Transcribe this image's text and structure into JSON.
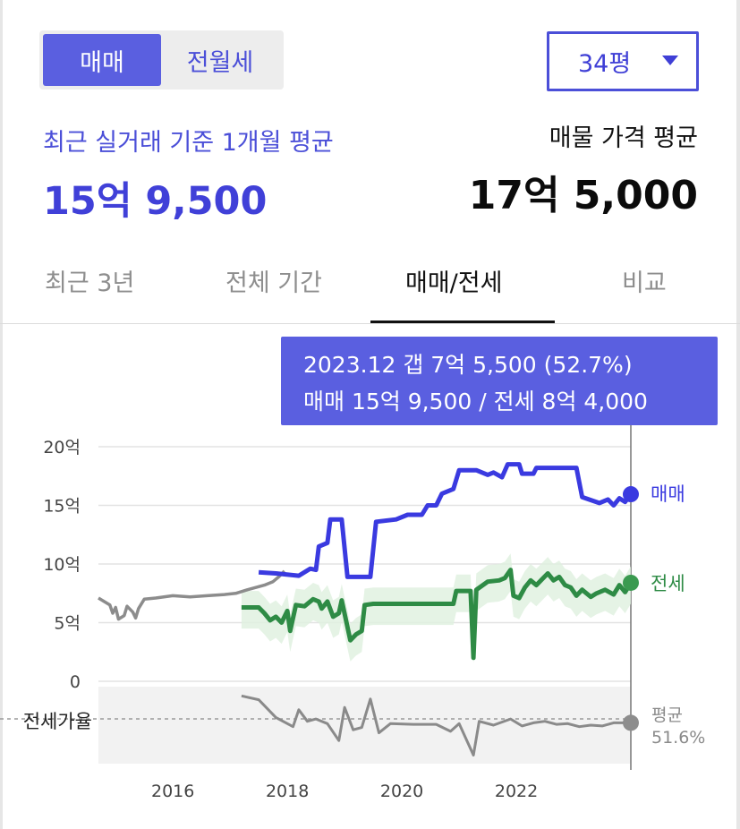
{
  "toggle": {
    "sale_label": "매매",
    "rent_label": "전월세"
  },
  "size_select": {
    "value": "34평"
  },
  "summary": {
    "recent_label": "최근 실거래 기준 1개월 평균",
    "recent_value": "15억 9,500",
    "listing_label": "매물 가격 평균",
    "listing_value": "17억 5,000"
  },
  "tabs": [
    {
      "label": "최근 3년",
      "active": false
    },
    {
      "label": "전체 기간",
      "active": false
    },
    {
      "label": "매매/전세",
      "active": true
    },
    {
      "label": "비교",
      "active": false
    }
  ],
  "tooltip": {
    "line1": "2023.12  갭 7억 5,500 (52.7%)",
    "line2": "매매 15억 9,500 / 전세 8억 4,000"
  },
  "colors": {
    "accent": "#4b4fd8",
    "sale": "#3a3ae0",
    "jeonse": "#2e8b45",
    "ratio": "#8a8a8a"
  },
  "chart_data": {
    "type": "line",
    "y_ticks": [
      "20억",
      "15억",
      "10억",
      "5억",
      "0"
    ],
    "ylim": [
      0,
      20
    ],
    "x_ticks": [
      "2016",
      "2018",
      "2020",
      "2022"
    ],
    "xlim": [
      2014.7,
      2024.0
    ],
    "ratio_axis_label": "전세가율",
    "series": [
      {
        "name": "매매",
        "label_value": "매매",
        "points": [
          [
            2014.7,
            7.1
          ],
          [
            2014.8,
            6.8
          ],
          [
            2014.9,
            6.5
          ],
          [
            2014.95,
            5.8
          ],
          [
            2015.0,
            6.3
          ],
          [
            2015.05,
            5.3
          ],
          [
            2015.15,
            5.6
          ],
          [
            2015.2,
            6.4
          ],
          [
            2015.3,
            5.9
          ],
          [
            2015.35,
            5.4
          ],
          [
            2015.4,
            6.2
          ],
          [
            2015.5,
            7.0
          ],
          [
            2015.7,
            7.1
          ],
          [
            2016.0,
            7.3
          ],
          [
            2016.3,
            7.2
          ],
          [
            2016.6,
            7.3
          ],
          [
            2016.9,
            7.4
          ],
          [
            2017.1,
            7.5
          ],
          [
            2017.3,
            7.8
          ],
          [
            2017.45,
            8.0
          ],
          [
            2017.6,
            8.2
          ],
          [
            2017.75,
            8.5
          ],
          [
            2017.85,
            8.9
          ],
          [
            2017.95,
            9.4
          ],
          [
            2017.5,
            9.3
          ],
          [
            2017.8,
            9.2
          ],
          [
            2018.2,
            9.0
          ],
          [
            2018.4,
            9.6
          ],
          [
            2018.5,
            9.5
          ],
          [
            2018.55,
            11.5
          ],
          [
            2018.7,
            11.8
          ],
          [
            2018.75,
            13.8
          ],
          [
            2018.95,
            13.8
          ],
          [
            2019.05,
            8.9
          ],
          [
            2019.45,
            8.9
          ],
          [
            2019.55,
            13.6
          ],
          [
            2019.9,
            13.8
          ],
          [
            2020.1,
            14.2
          ],
          [
            2020.35,
            14.2
          ],
          [
            2020.45,
            15.0
          ],
          [
            2020.6,
            15.0
          ],
          [
            2020.7,
            16.0
          ],
          [
            2020.9,
            16.4
          ],
          [
            2021.0,
            18.0
          ],
          [
            2021.3,
            18.0
          ],
          [
            2021.5,
            17.6
          ],
          [
            2021.6,
            17.8
          ],
          [
            2021.75,
            17.4
          ],
          [
            2021.85,
            18.5
          ],
          [
            2022.05,
            18.5
          ],
          [
            2022.1,
            17.7
          ],
          [
            2022.3,
            17.7
          ],
          [
            2022.35,
            18.2
          ],
          [
            2022.9,
            18.2
          ],
          [
            2023.05,
            18.2
          ],
          [
            2023.15,
            15.7
          ],
          [
            2023.45,
            15.2
          ],
          [
            2023.6,
            15.5
          ],
          [
            2023.7,
            15.0
          ],
          [
            2023.8,
            15.6
          ],
          [
            2023.9,
            15.3
          ],
          [
            2024.0,
            15.95
          ]
        ]
      },
      {
        "name": "전세",
        "label_value": "전세",
        "points": [
          [
            2017.2,
            6.3
          ],
          [
            2017.5,
            6.3
          ],
          [
            2017.6,
            5.8
          ],
          [
            2017.7,
            5.2
          ],
          [
            2017.8,
            5.5
          ],
          [
            2017.9,
            5.0
          ],
          [
            2018.0,
            6.0
          ],
          [
            2018.05,
            4.3
          ],
          [
            2018.15,
            6.5
          ],
          [
            2018.3,
            6.4
          ],
          [
            2018.45,
            7.0
          ],
          [
            2018.55,
            6.8
          ],
          [
            2018.6,
            6.2
          ],
          [
            2018.7,
            6.8
          ],
          [
            2018.8,
            5.5
          ],
          [
            2018.9,
            5.8
          ],
          [
            2018.95,
            6.9
          ],
          [
            2019.1,
            3.5
          ],
          [
            2019.2,
            4.0
          ],
          [
            2019.3,
            4.3
          ],
          [
            2019.35,
            6.5
          ],
          [
            2019.5,
            6.6
          ],
          [
            2020.3,
            6.6
          ],
          [
            2020.9,
            6.6
          ],
          [
            2020.95,
            7.7
          ],
          [
            2021.2,
            7.7
          ],
          [
            2021.25,
            2.0
          ],
          [
            2021.3,
            7.8
          ],
          [
            2021.5,
            8.5
          ],
          [
            2021.7,
            8.6
          ],
          [
            2021.8,
            8.8
          ],
          [
            2021.9,
            9.5
          ],
          [
            2021.95,
            7.3
          ],
          [
            2022.05,
            7.1
          ],
          [
            2022.15,
            8.0
          ],
          [
            2022.25,
            8.6
          ],
          [
            2022.35,
            8.2
          ],
          [
            2022.45,
            8.7
          ],
          [
            2022.55,
            9.2
          ],
          [
            2022.65,
            8.6
          ],
          [
            2022.75,
            8.9
          ],
          [
            2022.85,
            8.2
          ],
          [
            2022.95,
            8.0
          ],
          [
            2023.05,
            7.3
          ],
          [
            2023.15,
            7.8
          ],
          [
            2023.3,
            7.2
          ],
          [
            2023.4,
            7.5
          ],
          [
            2023.55,
            7.8
          ],
          [
            2023.7,
            7.4
          ],
          [
            2023.8,
            8.2
          ],
          [
            2023.9,
            7.6
          ],
          [
            2024.0,
            8.4
          ]
        ]
      },
      {
        "name": "전세가율",
        "label_value": "평균",
        "average_label": "평균",
        "average_value": "51.6%",
        "points": [
          [
            2017.2,
            0.88
          ],
          [
            2017.5,
            0.83
          ],
          [
            2017.8,
            0.6
          ],
          [
            2018.1,
            0.48
          ],
          [
            2018.2,
            0.7
          ],
          [
            2018.35,
            0.55
          ],
          [
            2018.5,
            0.58
          ],
          [
            2018.7,
            0.52
          ],
          [
            2018.9,
            0.3
          ],
          [
            2019.0,
            0.73
          ],
          [
            2019.15,
            0.44
          ],
          [
            2019.3,
            0.47
          ],
          [
            2019.45,
            0.84
          ],
          [
            2019.6,
            0.4
          ],
          [
            2019.8,
            0.52
          ],
          [
            2020.2,
            0.51
          ],
          [
            2020.6,
            0.51
          ],
          [
            2020.85,
            0.42
          ],
          [
            2021.0,
            0.52
          ],
          [
            2021.25,
            0.11
          ],
          [
            2021.35,
            0.55
          ],
          [
            2021.6,
            0.5
          ],
          [
            2021.9,
            0.58
          ],
          [
            2022.1,
            0.49
          ],
          [
            2022.3,
            0.53
          ],
          [
            2022.5,
            0.55
          ],
          [
            2022.7,
            0.51
          ],
          [
            2022.9,
            0.52
          ],
          [
            2023.1,
            0.48
          ],
          [
            2023.3,
            0.5
          ],
          [
            2023.5,
            0.49
          ],
          [
            2023.7,
            0.53
          ],
          [
            2024.0,
            0.53
          ]
        ]
      }
    ]
  }
}
